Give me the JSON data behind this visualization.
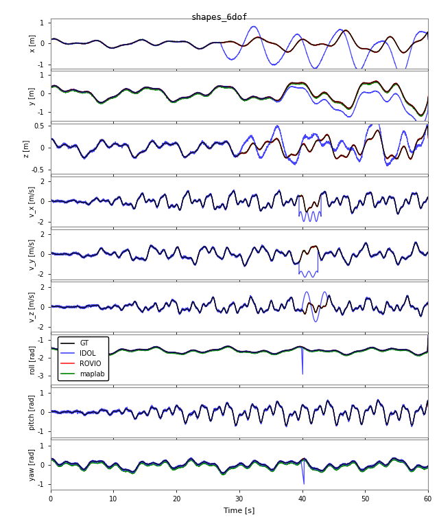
{
  "title": "shapes_6dof",
  "subplots": [
    {
      "ylabel": "x [m]",
      "ylim": [
        -1.2,
        1.2
      ],
      "yticks": [
        -1,
        0,
        1
      ]
    },
    {
      "ylabel": "y [m]",
      "ylim": [
        -1.5,
        1.2
      ],
      "yticks": [
        -1,
        0,
        1
      ]
    },
    {
      "ylabel": "z [m]",
      "ylim": [
        -0.6,
        0.55
      ],
      "yticks": [
        -0.5,
        0,
        0.5
      ]
    },
    {
      "ylabel": "v_x [m/s]",
      "ylim": [
        -2.5,
        2.5
      ],
      "yticks": [
        -2,
        0,
        2
      ]
    },
    {
      "ylabel": "v_y [m/s]",
      "ylim": [
        -2.5,
        2.5
      ],
      "yticks": [
        -2,
        0,
        2
      ]
    },
    {
      "ylabel": "v_z [m/s]",
      "ylim": [
        -2.5,
        2.5
      ],
      "yticks": [
        -2,
        0,
        2
      ]
    },
    {
      "ylabel": "roll [rad]",
      "ylim": [
        -3.5,
        -0.7
      ],
      "yticks": [
        -3,
        -2,
        -1
      ]
    },
    {
      "ylabel": "pitch [rad]",
      "ylim": [
        -1.3,
        1.3
      ],
      "yticks": [
        -1,
        0,
        1
      ]
    },
    {
      "ylabel": "yaw [rad]",
      "ylim": [
        -1.3,
        1.3
      ],
      "yticks": [
        -1,
        0,
        1
      ]
    }
  ],
  "xlim": [
    0,
    60
  ],
  "xticks": [
    0,
    10,
    20,
    30,
    40,
    50,
    60
  ],
  "xlabel": "Time [s]",
  "colors": {
    "GT": "#000000",
    "IDOL": "#4444ff",
    "ROVIO": "#ff2222",
    "maplab": "#008800"
  },
  "legend_order": [
    "GT",
    "IDOL",
    "ROVIO",
    "maplab"
  ],
  "legend_subplot": 6,
  "background": "#ffffff",
  "spine_color": "#888888",
  "lw_gt": 0.9,
  "lw_other": 0.9,
  "title_fontsize": 9,
  "ylabel_fontsize": 7,
  "tick_fontsize": 7
}
